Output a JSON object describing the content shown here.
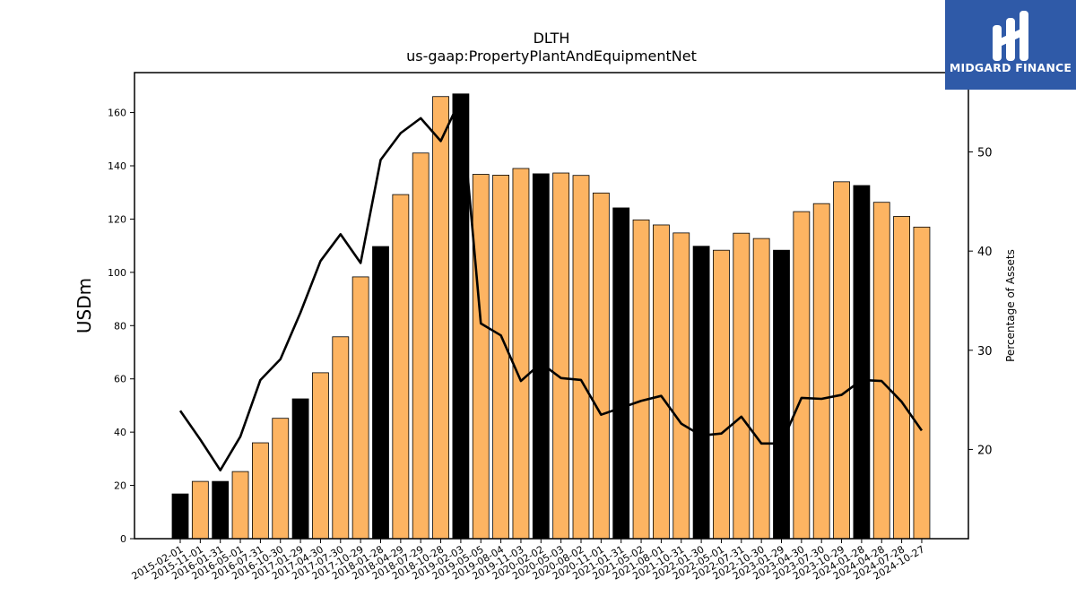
{
  "chart_data": {
    "type": "bar",
    "title": "DLTH",
    "subtitle": "us-gaap:PropertyPlantAndEquipmentNet",
    "ylabel": "USDm",
    "y2label": "Percentage of Assets",
    "ylim": [
      0,
      175
    ],
    "y2lim": [
      11,
      58
    ],
    "yticks": [
      0,
      20,
      40,
      60,
      80,
      100,
      120,
      140,
      160
    ],
    "y2ticks": [
      20,
      30,
      40,
      50
    ],
    "grid": false,
    "categories": [
      "2015-02-01",
      "2015-11-01",
      "2016-01-31",
      "2016-05-01",
      "2016-07-31",
      "2016-10-30",
      "2017-01-29",
      "2017-04-30",
      "2017-07-30",
      "2017-10-29",
      "2018-01-28",
      "2018-04-29",
      "2018-07-29",
      "2018-10-28",
      "2019-02-03",
      "2019-05-05",
      "2019-08-04",
      "2019-11-03",
      "2020-02-02",
      "2020-05-03",
      "2020-08-02",
      "2020-11-01",
      "2021-01-31",
      "2021-05-02",
      "2021-08-01",
      "2021-10-31",
      "2022-01-30",
      "2022-05-01",
      "2022-07-31",
      "2022-10-30",
      "2023-01-29",
      "2023-04-30",
      "2023-07-30",
      "2023-10-29",
      "2024-01-28",
      "2024-04-28",
      "2024-07-28",
      "2024-10-27"
    ],
    "series": [
      {
        "name": "",
        "kind": "bar",
        "values": [
          16.8,
          21.5,
          21.5,
          25.2,
          36.0,
          45.2,
          52.5,
          62.3,
          75.8,
          98.3,
          109.7,
          129.2,
          144.8,
          166.0,
          167.0,
          136.8,
          136.5,
          139.0,
          137.0,
          137.3,
          136.4,
          129.8,
          124.2,
          119.7,
          117.8,
          114.8,
          109.8,
          108.3,
          114.7,
          112.7,
          108.3,
          122.8,
          125.8,
          134.0,
          132.6,
          126.3,
          121.0,
          117.0
        ],
        "fiscal_year_end": [
          true,
          false,
          true,
          false,
          false,
          false,
          true,
          false,
          false,
          false,
          true,
          false,
          false,
          false,
          true,
          false,
          false,
          false,
          true,
          false,
          false,
          false,
          true,
          false,
          false,
          false,
          true,
          false,
          false,
          false,
          true,
          false,
          false,
          false,
          true,
          false,
          false,
          false
        ]
      },
      {
        "name": "",
        "kind": "line",
        "axis": "right",
        "values": [
          23.9,
          21.0,
          17.9,
          21.3,
          27.0,
          29.1,
          33.8,
          39.0,
          41.7,
          38.8,
          49.2,
          51.9,
          53.4,
          51.1,
          55.4,
          32.7,
          31.5,
          26.9,
          28.7,
          27.2,
          27.0,
          23.5,
          24.2,
          24.9,
          25.4,
          22.6,
          21.4,
          21.6,
          23.3,
          20.6,
          20.6,
          25.2,
          25.1,
          25.5,
          27.0,
          26.9,
          24.8,
          21.9
        ]
      }
    ],
    "colors": {
      "bar_regular": "#fdb462",
      "bar_highlight": "#000000",
      "line": "#000000",
      "axis": "#000000"
    }
  },
  "logo": {
    "text": "MIDGARD FINANCE",
    "bg": "#2f5aa8"
  }
}
